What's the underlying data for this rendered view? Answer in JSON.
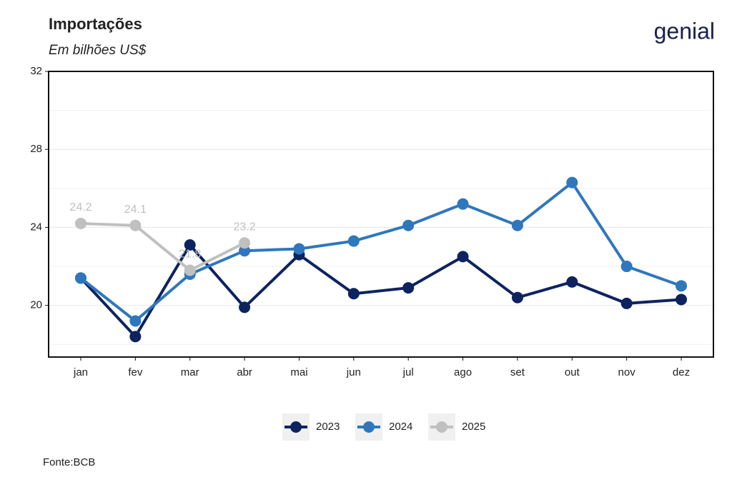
{
  "logo": "genial",
  "source": "Fonte:BCB",
  "chart_data": {
    "type": "line",
    "title": "Importações",
    "subtitle": "Em bilhões US$",
    "categories": [
      "jan",
      "fev",
      "mar",
      "abr",
      "mai",
      "jun",
      "jul",
      "ago",
      "set",
      "out",
      "nov",
      "dez"
    ],
    "series": [
      {
        "name": "2023",
        "color": "#0d2360",
        "values": [
          21.4,
          18.4,
          23.1,
          19.9,
          22.6,
          20.6,
          20.9,
          22.5,
          20.4,
          21.2,
          20.1,
          20.3
        ]
      },
      {
        "name": "2024",
        "color": "#2f77bd",
        "values": [
          21.4,
          19.2,
          21.6,
          22.8,
          22.9,
          23.3,
          24.1,
          25.2,
          24.1,
          26.3,
          22.0,
          21.0
        ]
      },
      {
        "name": "2025",
        "color": "#c0c0c0",
        "values": [
          24.2,
          24.1,
          21.8,
          23.2,
          null,
          null,
          null,
          null,
          null,
          null,
          null,
          null
        ],
        "data_labels": true
      }
    ],
    "ylim": [
      17.35,
      32
    ],
    "yticks": [
      20,
      24,
      28,
      32
    ],
    "y_minor_ticks": [
      18,
      22,
      26,
      30
    ],
    "grid": true,
    "legend": "bottom"
  }
}
